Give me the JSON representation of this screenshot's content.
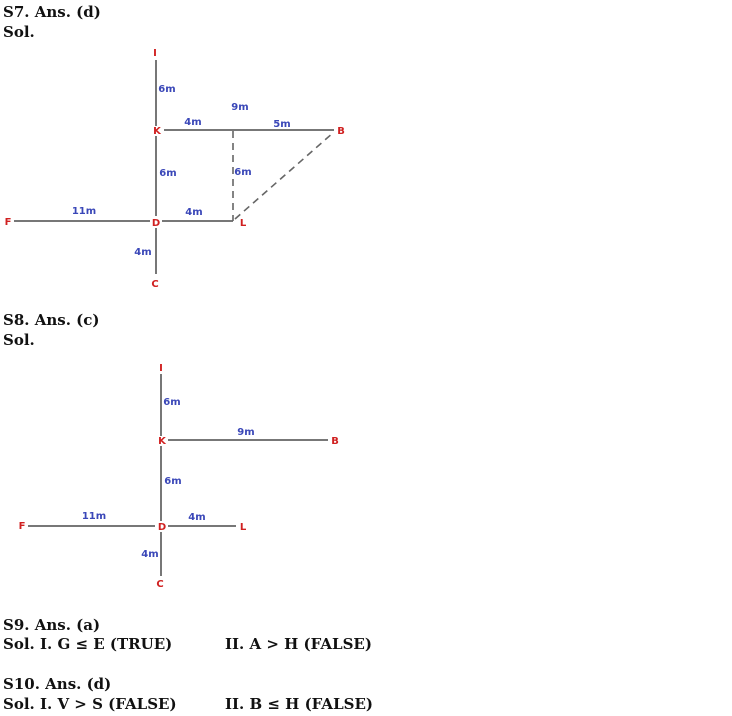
{
  "s7": {
    "heading": "S7. Ans. (d)",
    "sol": "Sol.",
    "points": {
      "I": "I",
      "K": "K",
      "B": "B",
      "F": "F",
      "D": "D",
      "L": "L",
      "C": "C"
    },
    "distances": {
      "IK": "6m",
      "KD": "6m",
      "KX": "4m",
      "XB": "5m",
      "KB": "9m",
      "XL": "6m",
      "FD": "11m",
      "DL": "4m",
      "DC": "4m"
    }
  },
  "s8": {
    "heading": "S8. Ans. (c)",
    "sol": "Sol.",
    "points": {
      "I": "I",
      "K": "K",
      "B": "B",
      "F": "F",
      "D": "D",
      "L": "L",
      "C": "C"
    },
    "distances": {
      "IK": "6m",
      "KB": "9m",
      "KD": "6m",
      "FD": "11m",
      "DL": "4m",
      "DC": "4m"
    }
  },
  "s9": {
    "heading": "S9. Ans. (a)",
    "sol1": "Sol. I. G ≤ E (TRUE)",
    "sol2": "II. A > H (FALSE)"
  },
  "s10": {
    "heading": "S10. Ans. (d)",
    "sol1": "Sol. I. V > S (FALSE)",
    "sol2": "II. B ≤ H (FALSE)"
  }
}
